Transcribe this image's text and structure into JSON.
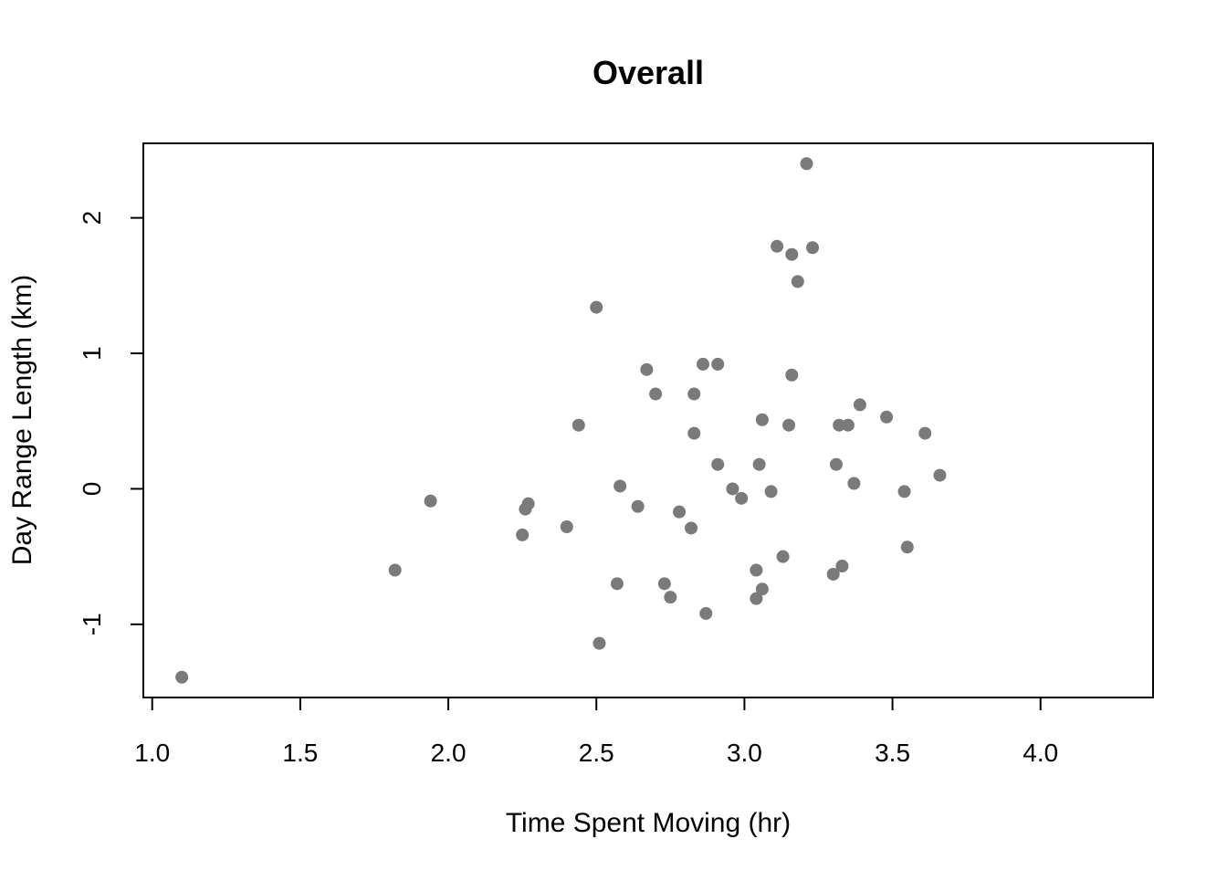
{
  "chart_data": {
    "type": "scatter",
    "title": "Overall",
    "xlabel": "Time Spent Moving (hr)",
    "ylabel": "Day Range Length (km)",
    "xlim": [
      0.97,
      4.38
    ],
    "ylim": [
      -1.54,
      2.55
    ],
    "x_ticks": [
      1.0,
      1.5,
      2.0,
      2.5,
      3.0,
      3.5,
      4.0
    ],
    "x_tick_labels": [
      "1.0",
      "1.5",
      "2.0",
      "2.5",
      "3.0",
      "3.5",
      "4.0"
    ],
    "y_ticks": [
      -1,
      0,
      1,
      2
    ],
    "y_tick_labels": [
      "-1",
      "0",
      "1",
      "2"
    ],
    "grid": false,
    "point_color": "#7a7a7a",
    "points": [
      {
        "x": 1.1,
        "y": -1.39
      },
      {
        "x": 1.82,
        "y": -0.6
      },
      {
        "x": 1.94,
        "y": -0.09
      },
      {
        "x": 2.25,
        "y": -0.34
      },
      {
        "x": 2.26,
        "y": -0.15
      },
      {
        "x": 2.27,
        "y": -0.11
      },
      {
        "x": 2.4,
        "y": -0.28
      },
      {
        "x": 2.44,
        "y": 0.47
      },
      {
        "x": 2.5,
        "y": 1.34
      },
      {
        "x": 2.51,
        "y": -1.14
      },
      {
        "x": 2.57,
        "y": -0.7
      },
      {
        "x": 2.58,
        "y": 0.02
      },
      {
        "x": 2.64,
        "y": -0.13
      },
      {
        "x": 2.67,
        "y": 0.88
      },
      {
        "x": 2.7,
        "y": 0.7
      },
      {
        "x": 2.73,
        "y": -0.7
      },
      {
        "x": 2.75,
        "y": -0.8
      },
      {
        "x": 2.78,
        "y": -0.17
      },
      {
        "x": 2.82,
        "y": -0.29
      },
      {
        "x": 2.83,
        "y": 0.7
      },
      {
        "x": 2.83,
        "y": 0.41
      },
      {
        "x": 2.86,
        "y": 0.92
      },
      {
        "x": 2.87,
        "y": -0.92
      },
      {
        "x": 2.91,
        "y": 0.92
      },
      {
        "x": 2.91,
        "y": 0.18
      },
      {
        "x": 2.96,
        "y": 0.0
      },
      {
        "x": 2.99,
        "y": -0.07
      },
      {
        "x": 3.04,
        "y": -0.6
      },
      {
        "x": 3.04,
        "y": -0.81
      },
      {
        "x": 3.05,
        "y": 0.18
      },
      {
        "x": 3.06,
        "y": -0.74
      },
      {
        "x": 3.06,
        "y": 0.51
      },
      {
        "x": 3.09,
        "y": -0.02
      },
      {
        "x": 3.11,
        "y": 1.79
      },
      {
        "x": 3.13,
        "y": -0.5
      },
      {
        "x": 3.15,
        "y": 0.47
      },
      {
        "x": 3.16,
        "y": 1.73
      },
      {
        "x": 3.16,
        "y": 0.84
      },
      {
        "x": 3.18,
        "y": 1.53
      },
      {
        "x": 3.21,
        "y": 2.4
      },
      {
        "x": 3.23,
        "y": 1.78
      },
      {
        "x": 3.3,
        "y": -0.63
      },
      {
        "x": 3.31,
        "y": 0.18
      },
      {
        "x": 3.32,
        "y": 0.47
      },
      {
        "x": 3.33,
        "y": -0.57
      },
      {
        "x": 3.35,
        "y": 0.47
      },
      {
        "x": 3.37,
        "y": 0.04
      },
      {
        "x": 3.39,
        "y": 0.62
      },
      {
        "x": 3.48,
        "y": 0.53
      },
      {
        "x": 3.54,
        "y": -0.02
      },
      {
        "x": 3.55,
        "y": -0.43
      },
      {
        "x": 3.61,
        "y": 0.41
      },
      {
        "x": 3.66,
        "y": 0.1
      }
    ]
  }
}
